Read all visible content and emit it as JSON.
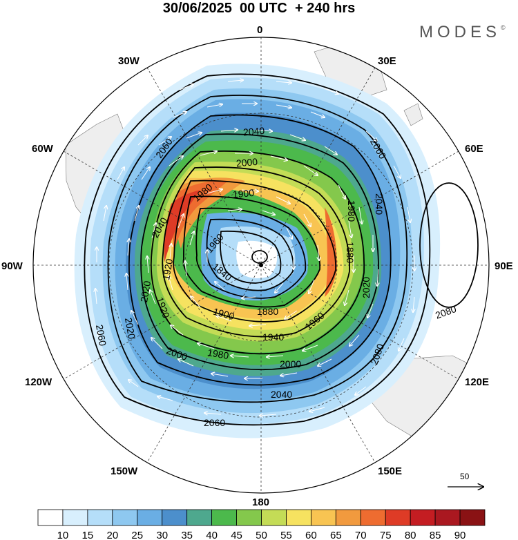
{
  "header": {
    "title": "30/06/2025  00 UTC  + 240 hrs",
    "logo": "MODES",
    "logo_mark": "©"
  },
  "map": {
    "projection": "south-polar-stereographic",
    "longitude_labels": {
      "top": "0",
      "top_right": "30E",
      "right_upper": "60E",
      "right": "90E",
      "right_lower": "120E",
      "bottom_right": "150E",
      "bottom": "180",
      "bottom_left": "150W",
      "left_lower": "120W",
      "left": "90W",
      "left_upper": "60W",
      "top_left": "30W"
    },
    "contour_labels": [
      "2040",
      "2060",
      "2000",
      "1980",
      "2040",
      "1900",
      "1960",
      "2020",
      "1920",
      "1840",
      "1880",
      "1920",
      "2020",
      "1880",
      "1900",
      "2020",
      "2060",
      "1940",
      "1960",
      "1980",
      "2000",
      "2000",
      "2060",
      "2040",
      "2060",
      "2080",
      "2080",
      "2040",
      "1980"
    ],
    "reference_vector": {
      "label": "50"
    }
  },
  "colorbar": {
    "colors": [
      "#ffffff",
      "#d8effd",
      "#b5def9",
      "#8ec8f0",
      "#6aaee4",
      "#4c8fcc",
      "#4ea88e",
      "#4cb94c",
      "#84c84c",
      "#c4dc56",
      "#f6e260",
      "#f8c452",
      "#f19a3e",
      "#ee6c30",
      "#de3b26",
      "#c41d22",
      "#aa1820",
      "#8a1214"
    ],
    "ticks": [
      "10",
      "15",
      "20",
      "25",
      "30",
      "35",
      "40",
      "45",
      "50",
      "55",
      "60",
      "65",
      "70",
      "75",
      "80",
      "85",
      "90"
    ]
  }
}
